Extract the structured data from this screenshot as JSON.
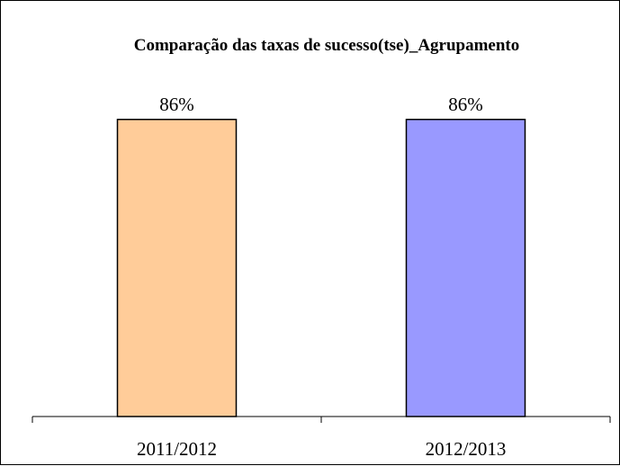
{
  "chart_data": {
    "type": "bar",
    "title": "Comparação das taxas de sucesso(tse)_Agrupamento",
    "categories": [
      "2011/2012",
      "2012/2013"
    ],
    "values": [
      86,
      86
    ],
    "data_labels": [
      "86%",
      "86%"
    ],
    "bar_colors": [
      "#FFCC99",
      "#9999FF"
    ],
    "ylim": [
      0,
      100
    ],
    "xlabel": "",
    "ylabel": "",
    "grid": false,
    "legend": "none"
  }
}
